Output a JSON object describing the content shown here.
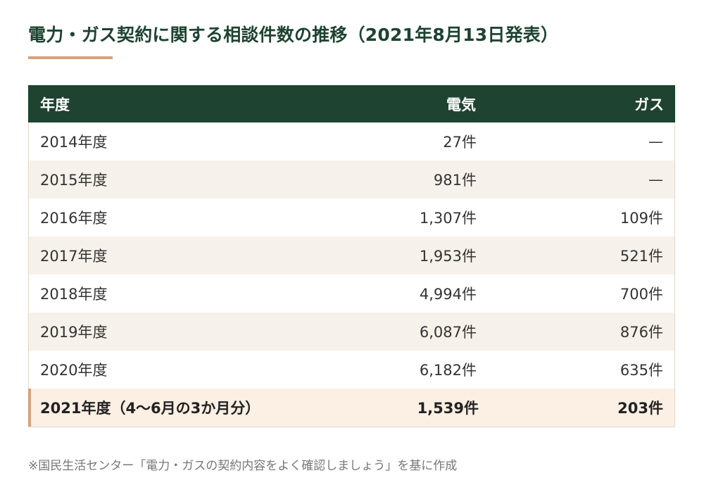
{
  "title": "電力・ガス契約に関する相談件数の推移（2021年8月13日発表）",
  "table": {
    "headers": {
      "year": "年度",
      "electricity": "電気",
      "gas": "ガス"
    },
    "rows": [
      {
        "year": "2014年度",
        "electricity": "27件",
        "gas": "—"
      },
      {
        "year": "2015年度",
        "electricity": "981件",
        "gas": "—"
      },
      {
        "year": "2016年度",
        "electricity": "1,307件",
        "gas": "109件"
      },
      {
        "year": "2017年度",
        "electricity": "1,953件",
        "gas": "521件"
      },
      {
        "year": "2018年度",
        "electricity": "4,994件",
        "gas": "700件"
      },
      {
        "year": "2019年度",
        "electricity": "6,087件",
        "gas": "876件"
      },
      {
        "year": "2020年度",
        "electricity": "6,182件",
        "gas": "635件"
      },
      {
        "year": "2021年度（4〜6月の3か月分）",
        "electricity": "1,539件",
        "gas": "203件"
      }
    ]
  },
  "note": "※国民生活センター「電力・ガスの契約内容をよく確認しましょう」を基に作成",
  "colors": {
    "header_bg": "#1e4331",
    "accent": "#d6a27a",
    "stripe": "#f6f1ea",
    "highlight_bg": "#fcefe3"
  }
}
